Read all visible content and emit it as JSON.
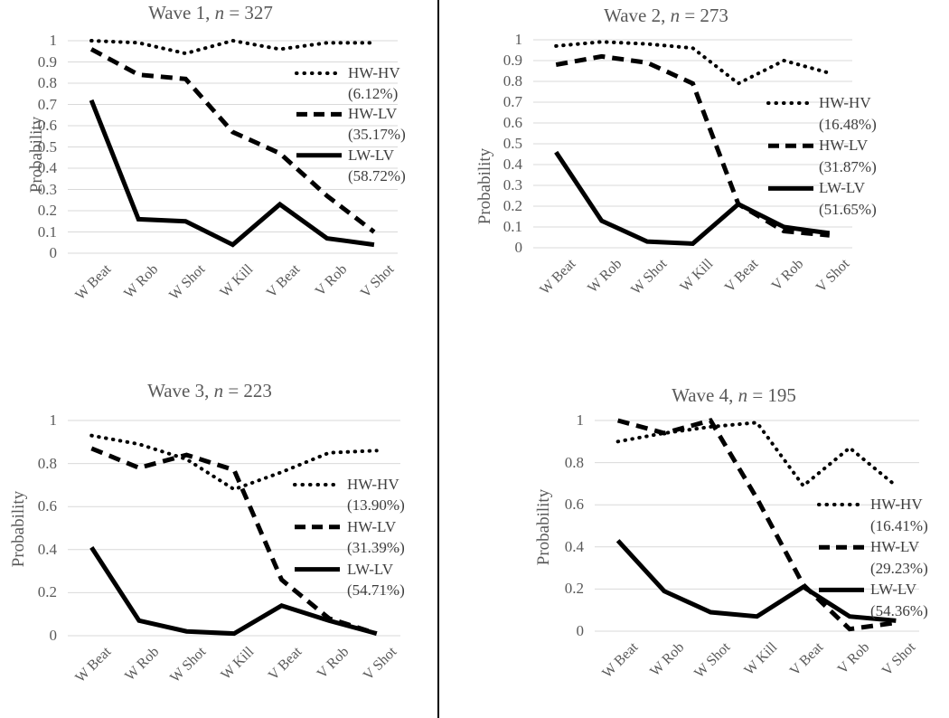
{
  "figure": {
    "description": "Four-panel line figure of conditional probabilities by wave",
    "panel_divider_color": "#000000",
    "series_color": "#000000",
    "grid_color": "#d9d9d9"
  },
  "chart_data": [
    {
      "type": "line",
      "title": "Wave 1, n = 327",
      "title_parts": {
        "prefix": "Wave 1, ",
        "n": "n",
        "rest": " = 327"
      },
      "ylabel": "Probability",
      "ylim": [
        0,
        1
      ],
      "grid": true,
      "legend_position": "right-inside",
      "yticks": [
        "1",
        "0.9",
        "0.8",
        "0.7",
        "0.6",
        "0.5",
        "0.4",
        "0.3",
        "0.2",
        "0.1",
        "0"
      ],
      "categories": [
        "W Beat",
        "W Rob",
        "W Shot",
        "W Kill",
        "V Beat",
        "V Rob",
        "V Shot"
      ],
      "series": [
        {
          "name": "HW-HV",
          "pct": "(6.12%)",
          "style": "dotted",
          "values": [
            1.0,
            0.99,
            0.94,
            1.0,
            0.96,
            0.99,
            0.99
          ]
        },
        {
          "name": "HW-LV",
          "pct": "(35.17%)",
          "style": "dashed",
          "values": [
            0.96,
            0.84,
            0.82,
            0.57,
            0.47,
            0.27,
            0.1
          ]
        },
        {
          "name": "LW-LV",
          "pct": "(58.72%)",
          "style": "solid",
          "values": [
            0.72,
            0.16,
            0.15,
            0.04,
            0.23,
            0.07,
            0.04
          ]
        }
      ]
    },
    {
      "type": "line",
      "title": "Wave 2, n = 273",
      "title_parts": {
        "prefix": "Wave 2, ",
        "n": "n",
        "rest": " = 273"
      },
      "ylabel": "Probability",
      "ylim": [
        0,
        1
      ],
      "grid": true,
      "legend_position": "right-inside",
      "yticks": [
        "1",
        "0.9",
        "0.8",
        "0.7",
        "0.6",
        "0.5",
        "0.4",
        "0.3",
        "0.2",
        "0.1",
        "0"
      ],
      "categories": [
        "W Beat",
        "W Rob",
        "W Shot",
        "W Kill",
        "V Beat",
        "V Rob",
        "V Shot"
      ],
      "series": [
        {
          "name": "HW-HV",
          "pct": "(16.48%)",
          "style": "dotted",
          "values": [
            0.97,
            0.99,
            0.98,
            0.96,
            0.79,
            0.9,
            0.84
          ]
        },
        {
          "name": "HW-LV",
          "pct": "(31.87%)",
          "style": "dashed",
          "values": [
            0.88,
            0.92,
            0.89,
            0.79,
            0.21,
            0.08,
            0.06
          ]
        },
        {
          "name": "LW-LV",
          "pct": "(51.65%)",
          "style": "solid",
          "values": [
            0.46,
            0.13,
            0.03,
            0.02,
            0.21,
            0.1,
            0.07
          ]
        }
      ]
    },
    {
      "type": "line",
      "title": "Wave 3, n = 223",
      "title_parts": {
        "prefix": "Wave 3, ",
        "n": "n",
        "rest": " = 223"
      },
      "ylabel": "Probability",
      "ylim": [
        0,
        1
      ],
      "grid": true,
      "legend_position": "right-inside",
      "yticks": [
        "1",
        "0.8",
        "0.6",
        "0.4",
        "0.2",
        "0"
      ],
      "categories": [
        "W Beat",
        "W Rob",
        "W Shot",
        "W Kill",
        "V Beat",
        "V Rob",
        "V Shot"
      ],
      "series": [
        {
          "name": "HW-HV",
          "pct": "(13.90%)",
          "style": "dotted",
          "values": [
            0.93,
            0.89,
            0.82,
            0.68,
            0.76,
            0.85,
            0.86
          ]
        },
        {
          "name": "HW-LV",
          "pct": "(31.39%)",
          "style": "dashed",
          "values": [
            0.87,
            0.78,
            0.84,
            0.77,
            0.26,
            0.08,
            0.01
          ]
        },
        {
          "name": "LW-LV",
          "pct": "(54.71%)",
          "style": "solid",
          "values": [
            0.41,
            0.07,
            0.02,
            0.01,
            0.14,
            0.07,
            0.01
          ]
        }
      ]
    },
    {
      "type": "line",
      "title": "Wave 4, n = 195",
      "title_parts": {
        "prefix": "Wave 4, ",
        "n": "n",
        "rest": " = 195"
      },
      "ylabel": "Probability",
      "ylim": [
        0,
        1
      ],
      "grid": true,
      "legend_position": "right-inside",
      "yticks": [
        "1",
        "0.8",
        "0.6",
        "0.4",
        "0.2",
        "0"
      ],
      "categories": [
        "W Beat",
        "W Rob",
        "W Shot",
        "W Kill",
        "V Beat",
        "V Rob",
        "V Shot"
      ],
      "series": [
        {
          "name": "HW-HV",
          "pct": "(16.41%)",
          "style": "dotted",
          "values": [
            0.9,
            0.94,
            0.97,
            0.99,
            0.69,
            0.87,
            0.69
          ]
        },
        {
          "name": "HW-LV",
          "pct": "(29.23%)",
          "style": "dashed",
          "values": [
            1.0,
            0.94,
            1.0,
            0.63,
            0.22,
            0.01,
            0.04
          ]
        },
        {
          "name": "LW-LV",
          "pct": "(54.36%)",
          "style": "solid",
          "values": [
            0.43,
            0.19,
            0.09,
            0.07,
            0.21,
            0.07,
            0.05
          ]
        }
      ]
    }
  ]
}
